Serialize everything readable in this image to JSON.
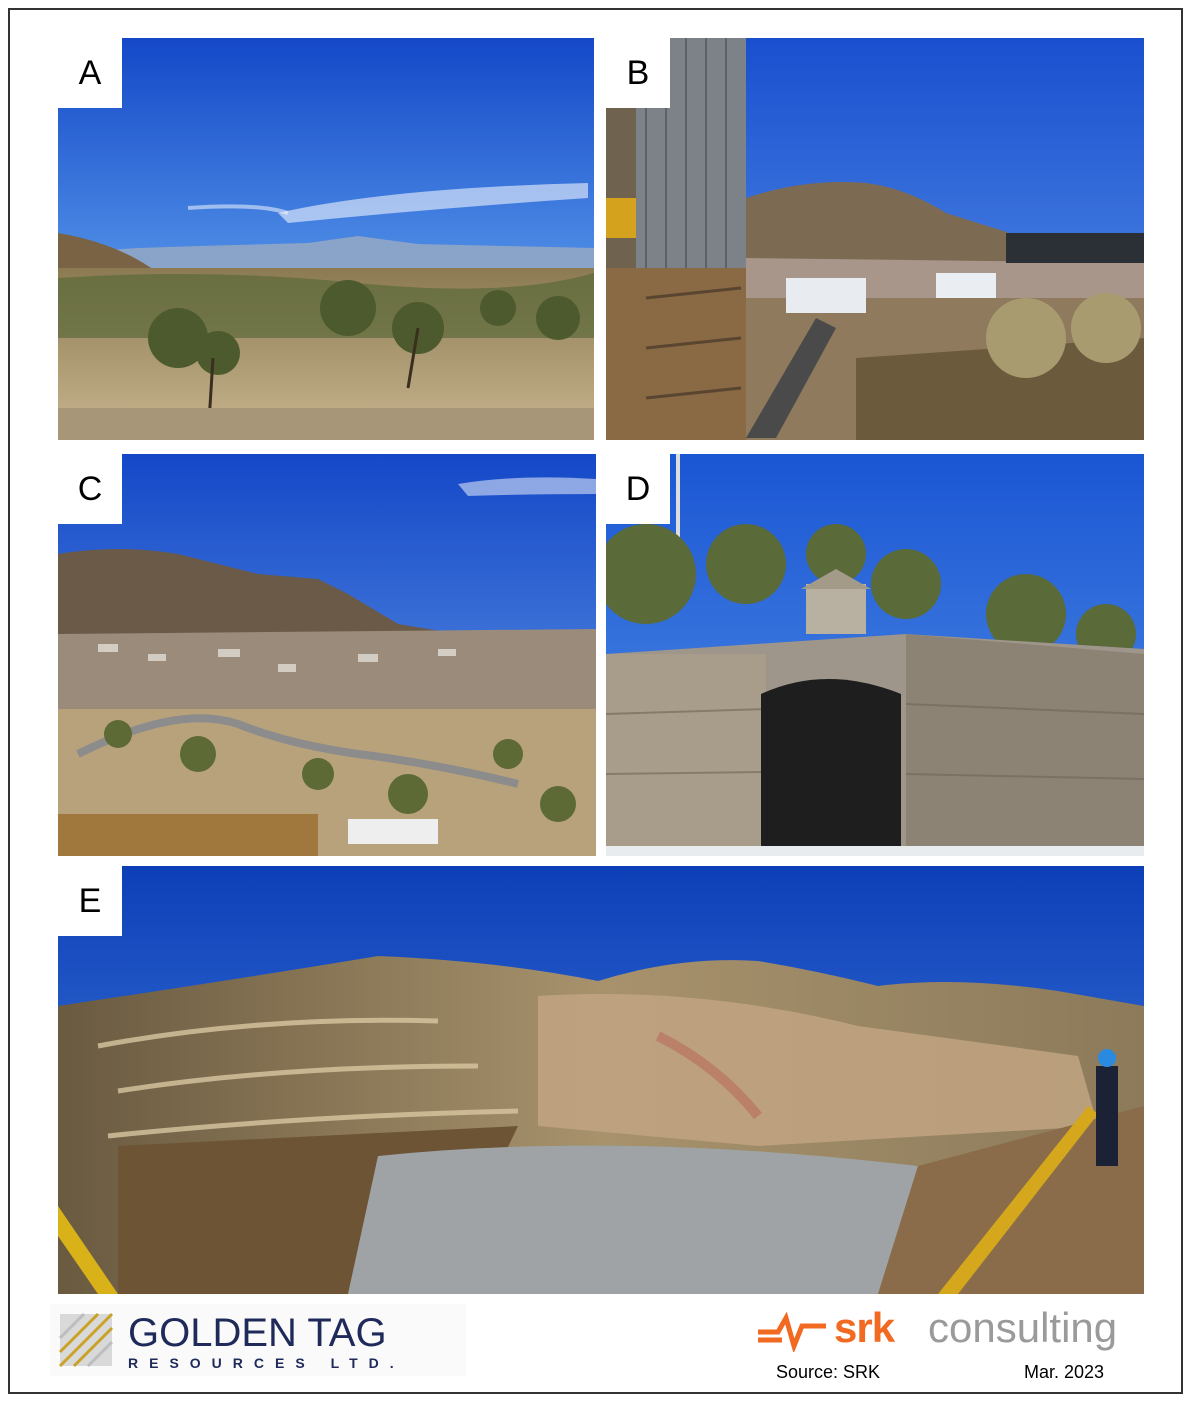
{
  "panels": [
    {
      "label": "A",
      "scene": "desert-valley-panorama"
    },
    {
      "label": "B",
      "scene": "mine-facility-with-town"
    },
    {
      "label": "C",
      "scene": "town-below-hill"
    },
    {
      "label": "D",
      "scene": "stone-portal-tunnel"
    },
    {
      "label": "E",
      "scene": "open-pit-benches"
    }
  ],
  "footer": {
    "company_name": "GOLDEN TAG",
    "company_sub": "RESOURCES LTD.",
    "consultant_brand": "srk",
    "consultant_word": "consulting",
    "source": "Source: SRK",
    "date": "Mar. 2023"
  },
  "colors": {
    "sky": "#1f5fd6",
    "ground": "#b8a07a",
    "gold": "#c9a227",
    "navy": "#1f2a5a",
    "srk_orange": "#f26a21"
  }
}
